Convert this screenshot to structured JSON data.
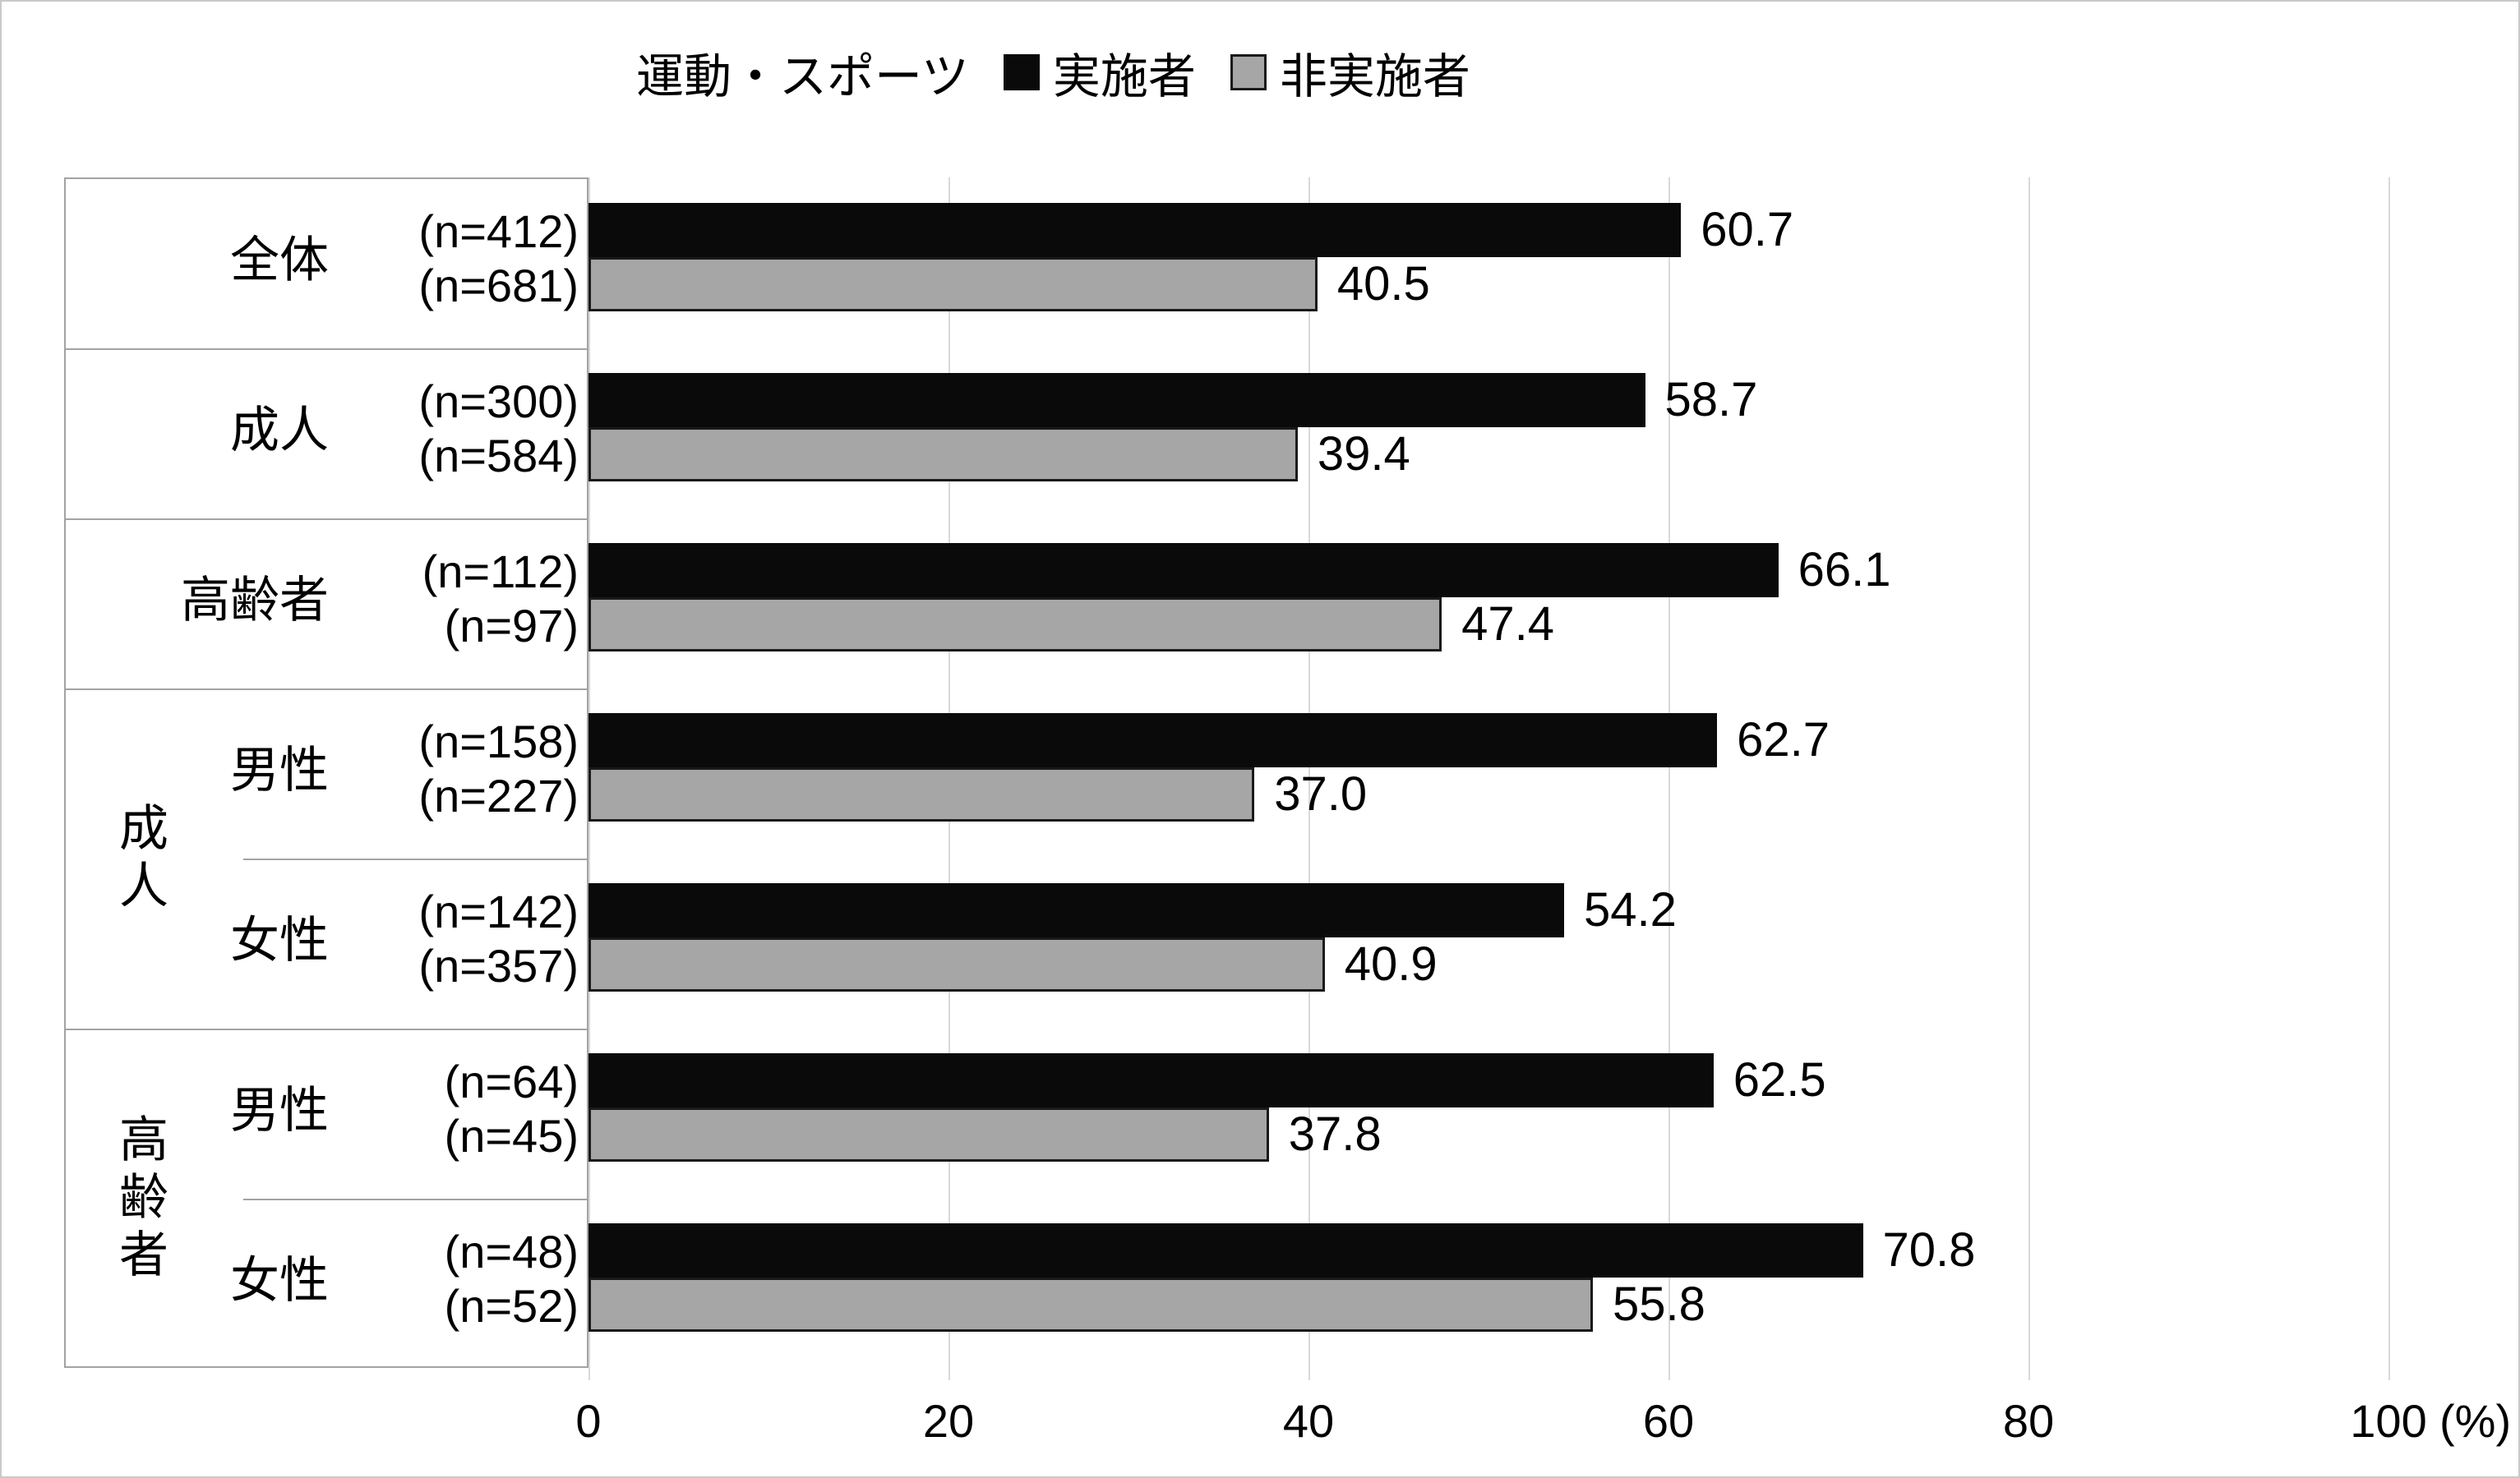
{
  "chart_data": {
    "type": "bar",
    "orientation": "horizontal",
    "legend": {
      "title": "運動・スポーツ",
      "series": [
        {
          "name": "実施者",
          "color": "#0a0a0a"
        },
        {
          "name": "非実施者",
          "color": "#a6a6a6"
        }
      ]
    },
    "axis": {
      "min": 0,
      "max": 100,
      "ticks": [
        "0",
        "20",
        "40",
        "60",
        "80",
        "100"
      ],
      "unit": "(%)"
    },
    "groups": [
      {
        "label": "成人",
        "rows": [
          3,
          4
        ]
      },
      {
        "label": "高齢者",
        "rows": [
          5,
          6
        ]
      }
    ],
    "rows": [
      {
        "group": "",
        "label": "全体",
        "n": [
          "(n=412)",
          "(n=681)"
        ],
        "values": [
          60.7,
          40.5
        ],
        "labels": [
          "60.7",
          "40.5"
        ]
      },
      {
        "group": "",
        "label": "成人",
        "n": [
          "(n=300)",
          "(n=584)"
        ],
        "values": [
          58.7,
          39.4
        ],
        "labels": [
          "58.7",
          "39.4"
        ]
      },
      {
        "group": "",
        "label": "高齢者",
        "n": [
          "(n=112)",
          "(n=97)"
        ],
        "values": [
          66.1,
          47.4
        ],
        "labels": [
          "66.1",
          "47.4"
        ]
      },
      {
        "group": "成人",
        "label": "男性",
        "n": [
          "(n=158)",
          "(n=227)"
        ],
        "values": [
          62.7,
          37.0
        ],
        "labels": [
          "62.7",
          "37.0"
        ]
      },
      {
        "group": "成人",
        "label": "女性",
        "n": [
          "(n=142)",
          "(n=357)"
        ],
        "values": [
          54.2,
          40.9
        ],
        "labels": [
          "54.2",
          "40.9"
        ]
      },
      {
        "group": "高齢者",
        "label": "男性",
        "n": [
          "(n=64)",
          "(n=45)"
        ],
        "values": [
          62.5,
          37.8
        ],
        "labels": [
          "62.5",
          "37.8"
        ]
      },
      {
        "group": "高齢者",
        "label": "女性",
        "n": [
          "(n=48)",
          "(n=52)"
        ],
        "values": [
          70.8,
          55.8
        ],
        "labels": [
          "70.8",
          "55.8"
        ]
      }
    ]
  }
}
